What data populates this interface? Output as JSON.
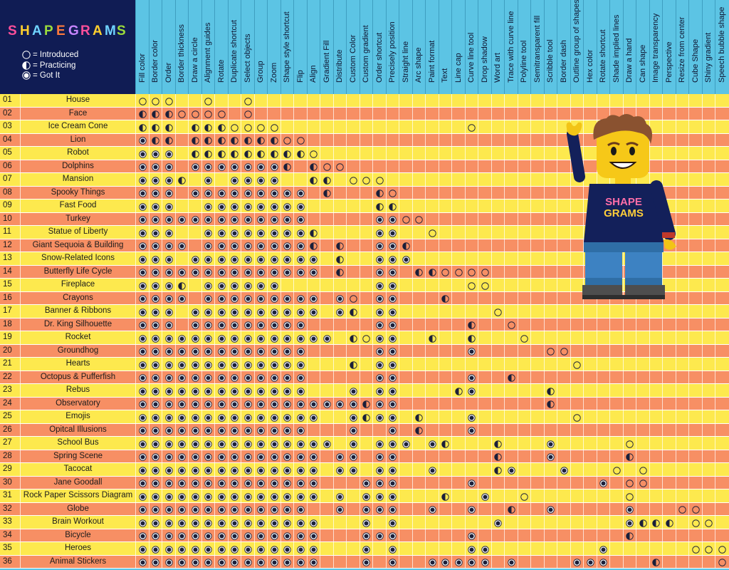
{
  "logo_text": "SHAPEGRAMS",
  "legend": [
    {
      "symbol": "empty",
      "label": "= Introduced"
    },
    {
      "symbol": "half",
      "label": "= Practicing"
    },
    {
      "symbol": "full",
      "label": "= Got It"
    }
  ],
  "columns": [
    "Fill color",
    "Border color",
    "Order",
    "Border thickness",
    "Draw a circle",
    "Alignment guides",
    "Rotate",
    "Duplicate shortcut",
    "Select objects",
    "Group",
    "Zoom",
    "Shape style shortcut",
    "Flip",
    "Align",
    "Gradient Fill",
    "Distribute",
    "Custom Color",
    "Custom gradient",
    "Order shortcut",
    "Precisely position",
    "Straight line",
    "Arc shape",
    "Paint format",
    "Text",
    "Line cap",
    "Curve line tool",
    "Drop shadow",
    "Word art",
    "Trace with curve line",
    "Polyline tool",
    "Semitransparent fill",
    "Scribble tool",
    "Border dash",
    "Outline group of shapes",
    "Hex color",
    "Rotate shortcut",
    "Shade implied lines",
    "Draw a hand",
    "Can shape",
    "Image transparency",
    "Perspective",
    "Resize from center",
    "Cube Shape",
    "Shiny gradient",
    "Speech bubble shape"
  ],
  "lessons": [
    {
      "num": "01",
      "name": "House",
      "marks": "EEE..E..E"
    },
    {
      "num": "02",
      "name": "Face",
      "marks": "HHHEEEE.E"
    },
    {
      "num": "03",
      "name": "Ice Cream Cone",
      "marks": "HHH.HHHEEEE..............E"
    },
    {
      "num": "04",
      "name": "Lion",
      "marks": "FHH.HHHHHHHEE"
    },
    {
      "num": "05",
      "name": "Robot",
      "marks": "FFF.HHHHHHHHHE"
    },
    {
      "num": "06",
      "name": "Dolphins",
      "marks": "FFF.FFFFFFFH.HEE"
    },
    {
      "num": "07",
      "name": "Mansion",
      "marks": "FFFH.F.FFFF..HH.EEE"
    },
    {
      "num": "08",
      "name": "Spooky Things",
      "marks": "FFF.FFFFFFFFF.H...HE"
    },
    {
      "num": "09",
      "name": "Fast Food",
      "marks": "FFF..FFFFFFFF.....HH"
    },
    {
      "num": "10",
      "name": "Turkey",
      "marks": "FFFFFFFFFFFFF.....FFEE"
    },
    {
      "num": "11",
      "name": "Statue of Liberty",
      "marks": "FFF..FFFFFFFFH....FF..E"
    },
    {
      "num": "12",
      "name": "Giant Sequoia & Building",
      "marks": "FFFF.FFFFFFFFH.H..FFH"
    },
    {
      "num": "13",
      "name": "Snow-Related Icons",
      "marks": "FFF.FFFFFFFFFF.H..FFF"
    },
    {
      "num": "14",
      "name": "Butterfly Life Cycle",
      "marks": "FFFFFFFFFFFFFF.H..FF.HHEEEE"
    },
    {
      "num": "15",
      "name": "Fireplace",
      "marks": "FFFH.FFFFFF.......FF.....EE"
    },
    {
      "num": "16",
      "name": "Crayons",
      "marks": "FFFF.FFFFFFFFF.FE.FF...H"
    },
    {
      "num": "17",
      "name": "Banner & Ribbons",
      "marks": "FFF.FFFFFFFFFF.FH.FF.......E"
    },
    {
      "num": "18",
      "name": "Dr. King Silhouette",
      "marks": "FFF.FFFFFFFFF.....FF.....H..E"
    },
    {
      "num": "19",
      "name": "Rocket",
      "marks": "FFFFFFFFFFFFFFF.HEFF..H..H...E"
    },
    {
      "num": "20",
      "name": "Groundhog",
      "marks": "FFFFFFFFFFFFF.....FF.....F.....EE"
    },
    {
      "num": "21",
      "name": "Hearts",
      "marks": "FFFFFFFFFFFFF...H.FF.............E"
    },
    {
      "num": "22",
      "name": "Octopus & Pufferfish",
      "marks": "FFFFFFFFFFFFF.....FF.....F..H"
    },
    {
      "num": "23",
      "name": "Rebus",
      "marks": "FFFFFFFFFFFFF...F.FF....HF.....H"
    },
    {
      "num": "24",
      "name": "Observatory",
      "marks": "FFFFFFFFFFFFFFFFFHFF...........H"
    },
    {
      "num": "25",
      "name": "Emojis",
      "marks": "FFFFFFFFFFFFFF..FHFF.H...F.......E"
    },
    {
      "num": "26",
      "name": "Opitcal Illusions",
      "marks": "FFFFFFFFFFFFF...F..F.H...F"
    },
    {
      "num": "27",
      "name": "School Bus",
      "marks": "FFFFFFFFFFFFFFF.F.FFF.FH...H...F.....E"
    },
    {
      "num": "28",
      "name": "Spring Scene",
      "marks": "FFFFFFFFFFFFFF.FF.FF.......H...F.....H"
    },
    {
      "num": "29",
      "name": "Tacocat",
      "marks": "FFFFFFFFFFFFFF.FF.FF..F....HF...F...E.E"
    },
    {
      "num": "30",
      "name": "Jane Goodall",
      "marks": "FFFFFFFFFFFFFF...FFF.....F.........F.EE"
    },
    {
      "num": "31",
      "name": "Rock Paper Scissors Diagram",
      "marks": "FFFFFFFFFFFFFF.F.FFF...H..F..E.......E"
    },
    {
      "num": "32",
      "name": "Globe",
      "marks": "FFFFFFFFFFFFF..F.FFF..F..F..H..F.....F...EE"
    },
    {
      "num": "33",
      "name": "Brain Workout",
      "marks": "FFFFFFFFFFFFFF...F.F.......F.........FHHH.EE"
    },
    {
      "num": "34",
      "name": "Bicycle",
      "marks": "FFFFFFFFFFFFFF...FFF.....F...........H"
    },
    {
      "num": "35",
      "name": "Heroes",
      "marks": "FFFFFFFFFFFFFF...F.F.....FF........F......EEE"
    },
    {
      "num": "36",
      "name": "Animal Stickers",
      "marks": "FFFFFFFFFFFFFF...F.F..FFFFF.F....FFF...H....E"
    }
  ],
  "mascot_shirt_text": "SHAPE GRAMS",
  "colors": {
    "navy": "#101c54",
    "sky": "#5cc4e4",
    "yellow": "#fde94e",
    "salmon": "#f78f64"
  }
}
